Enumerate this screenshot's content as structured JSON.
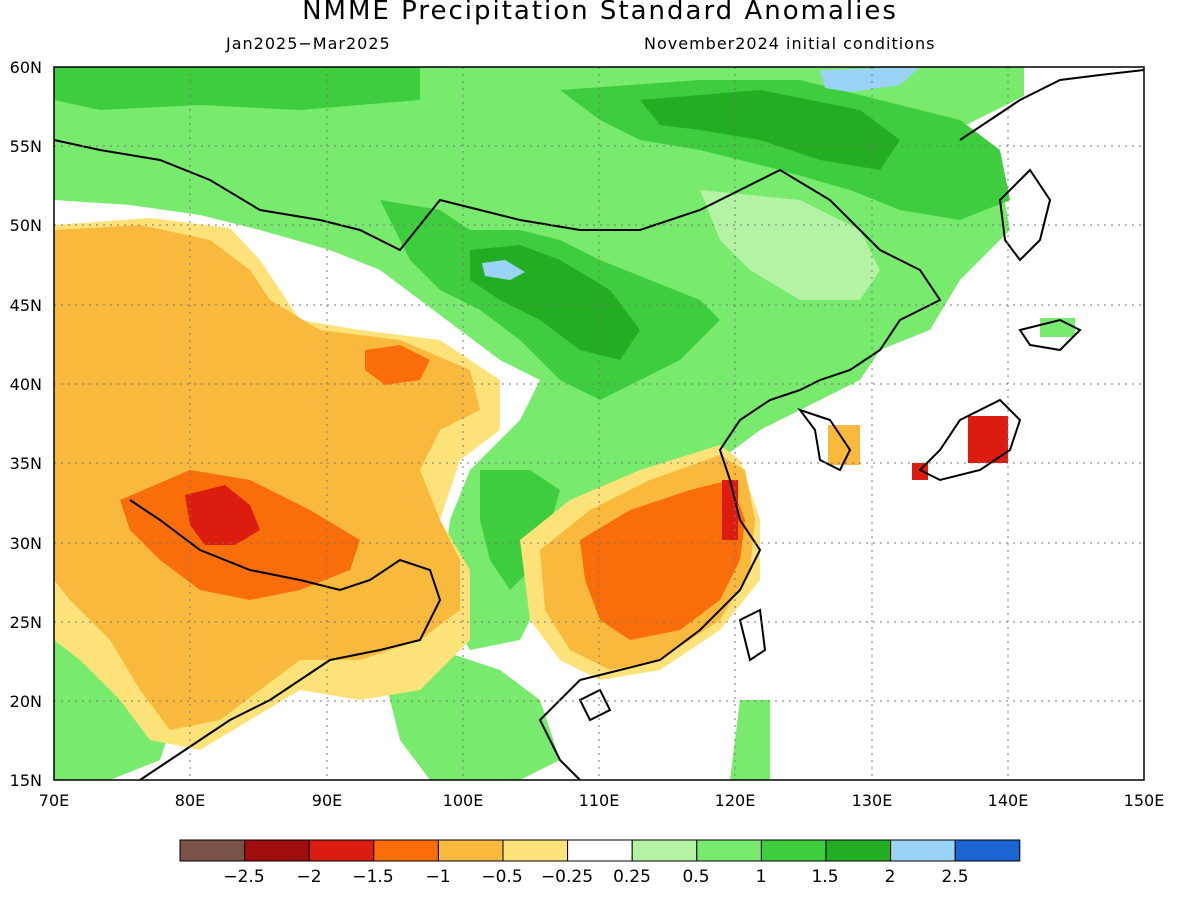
{
  "title": "NMME Precipitation Standard Anomalies",
  "period": "Jan2025−Mar2025",
  "initial_conditions": "November2024 initial conditions",
  "map": {
    "lon_range": [
      70,
      150
    ],
    "lat_range": [
      15,
      60
    ],
    "lat_labels": [
      "60N",
      "55N",
      "50N",
      "45N",
      "40N",
      "35N",
      "30N",
      "25N",
      "20N",
      "15N"
    ],
    "lon_labels": [
      "70E",
      "80E",
      "90E",
      "100E",
      "110E",
      "120E",
      "130E",
      "140E",
      "150E"
    ],
    "gridlines": "dotted"
  },
  "colorbar": {
    "colors": [
      "#7a5248",
      "#a00d0d",
      "#dd1c10",
      "#fa6e0a",
      "#f9b93d",
      "#fde27a",
      "#ffffff",
      "#b4f3a4",
      "#78eb6e",
      "#3ecd3e",
      "#22ad22",
      "#9bd3f6",
      "#1a64d4"
    ],
    "labels": [
      "−2.5",
      "−2",
      "−1.5",
      "−1",
      "−0.5",
      "−0.25",
      "0.25",
      "0.5",
      "1",
      "1.5",
      "2",
      "2.5"
    ]
  }
}
